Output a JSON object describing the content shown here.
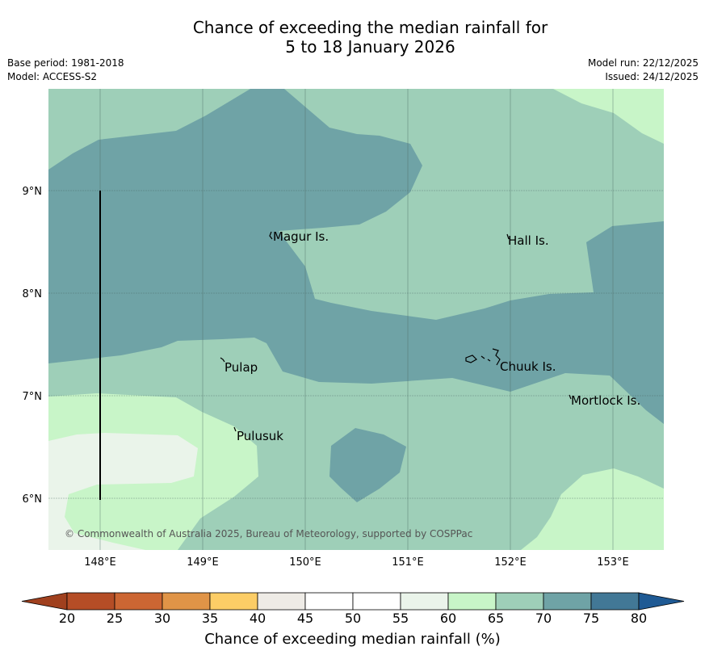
{
  "header": {
    "title_line1": "Chance of exceeding the median rainfall for",
    "title_line2": "5 to 18 January 2026",
    "base_period": "Base period: 1981-2018",
    "model": "Model: ACCESS-S2",
    "model_run": "Model run: 22/12/2025",
    "issued": "Issued: 24/12/2025"
  },
  "map": {
    "lat_labels": [
      "9°N",
      "8°N",
      "7°N",
      "6°N"
    ],
    "lon_labels": [
      "148°E",
      "149°E",
      "150°E",
      "151°E",
      "152°E",
      "153°E"
    ],
    "places": [
      "Magur Is.",
      "Hall Is.",
      "Pulap",
      "Chuuk Is.",
      "Mortlock Is.",
      "Pulusuk"
    ],
    "copyright": "© Commonwealth of Australia 2025, Bureau of Meteorology, supported by COSPPac",
    "colors": {
      "band_60_65": "#c8f5c8",
      "band_65_70": "#9ecfb8",
      "band_70_75": "#6fa3a6",
      "band_55_60": "#eaf4ea"
    }
  },
  "colorbar": {
    "ticks": [
      "20",
      "25",
      "30",
      "35",
      "40",
      "45",
      "50",
      "55",
      "60",
      "65",
      "70",
      "75",
      "80"
    ],
    "label": "Chance of exceeding median rainfall (%)",
    "colors": [
      "#a0401e",
      "#b54d26",
      "#cc6633",
      "#e09447",
      "#fccd66",
      "#eeebe6",
      "#ffffff",
      "#ffffff",
      "#eaf4ea",
      "#c8f5c8",
      "#9ecfb8",
      "#6fa3a6",
      "#427896",
      "#1f5a94"
    ]
  }
}
